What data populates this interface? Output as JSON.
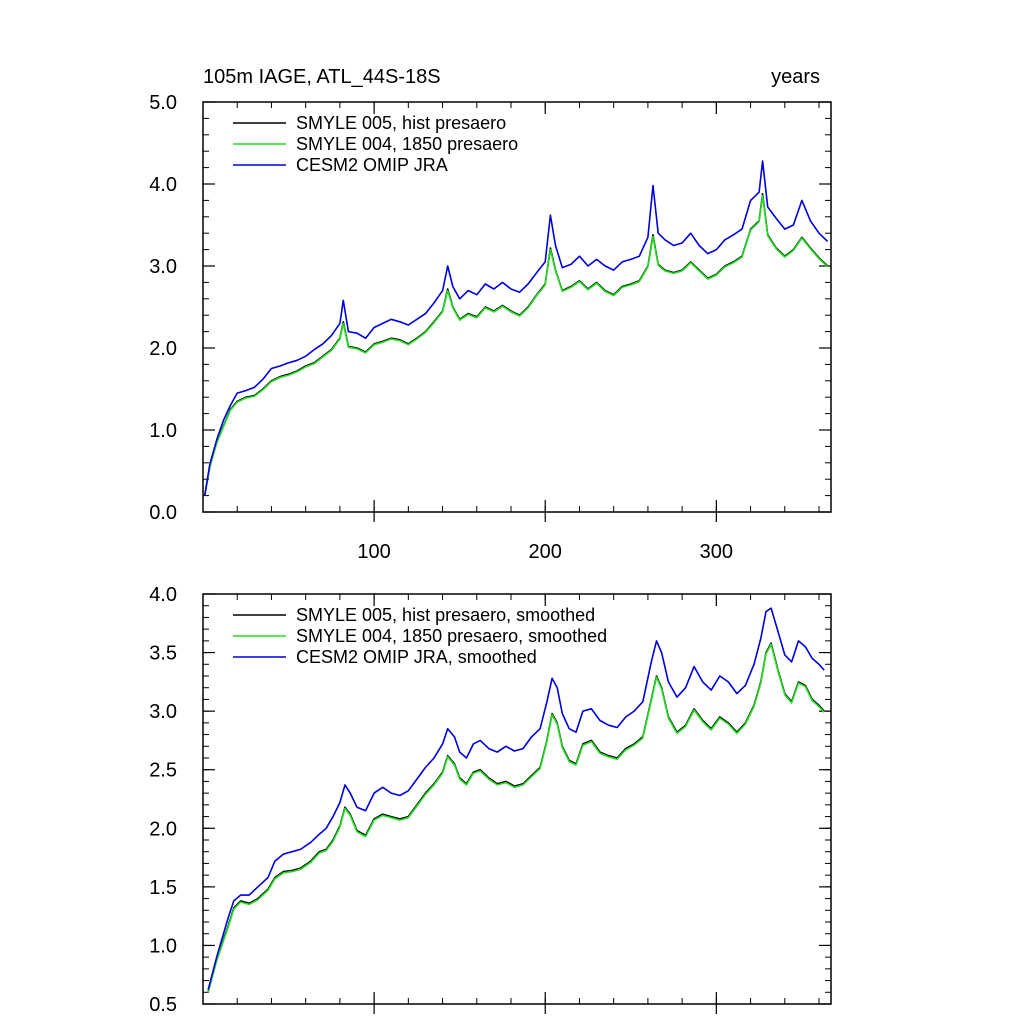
{
  "figure": {
    "title_left": "105m IAGE, ATL_44S-18S",
    "title_right": "years"
  },
  "chart_data": [
    {
      "type": "line",
      "xlim": [
        0,
        367
      ],
      "ylim": [
        0,
        5
      ],
      "x_ticks": [
        100,
        200,
        300
      ],
      "x_tick_labels": [
        "100",
        "200",
        "300"
      ],
      "y_ticks": [
        0,
        1,
        2,
        3,
        4,
        5
      ],
      "y_tick_labels": [
        "0.0",
        "1.0",
        "2.0",
        "3.0",
        "4.0",
        "5.0"
      ],
      "grid": false,
      "legend_position": "top-left",
      "series": [
        {
          "name": "SMYLE 005, hist presaero",
          "color": "#000000",
          "x": [
            1,
            4,
            8,
            12,
            16,
            20,
            25,
            30,
            35,
            40,
            45,
            50,
            55,
            60,
            65,
            70,
            75,
            80,
            82,
            85,
            90,
            95,
            100,
            105,
            110,
            115,
            120,
            125,
            130,
            135,
            140,
            143,
            146,
            150,
            155,
            160,
            165,
            170,
            175,
            180,
            185,
            190,
            195,
            200,
            203,
            206,
            210,
            215,
            220,
            225,
            230,
            235,
            240,
            245,
            250,
            255,
            260,
            263,
            266,
            270,
            275,
            280,
            285,
            290,
            295,
            300,
            305,
            310,
            315,
            320,
            325,
            327,
            330,
            335,
            340,
            345,
            350,
            355,
            360,
            365
          ],
          "y": [
            0.2,
            0.55,
            0.85,
            1.05,
            1.25,
            1.35,
            1.4,
            1.42,
            1.5,
            1.6,
            1.65,
            1.68,
            1.72,
            1.78,
            1.82,
            1.9,
            1.98,
            2.12,
            2.32,
            2.02,
            2.0,
            1.95,
            2.05,
            2.08,
            2.12,
            2.1,
            2.05,
            2.12,
            2.2,
            2.32,
            2.45,
            2.72,
            2.5,
            2.35,
            2.42,
            2.38,
            2.5,
            2.45,
            2.52,
            2.45,
            2.4,
            2.5,
            2.65,
            2.78,
            3.22,
            2.95,
            2.7,
            2.75,
            2.82,
            2.72,
            2.8,
            2.7,
            2.65,
            2.75,
            2.78,
            2.82,
            3.0,
            3.38,
            3.02,
            2.95,
            2.92,
            2.95,
            3.05,
            2.95,
            2.85,
            2.9,
            3.0,
            3.05,
            3.12,
            3.45,
            3.55,
            3.88,
            3.38,
            3.22,
            3.12,
            3.2,
            3.35,
            3.22,
            3.1,
            3.0
          ]
        },
        {
          "name": "SMYLE 004, 1850 presaero",
          "color": "#22dd22",
          "x": [
            1,
            4,
            8,
            12,
            16,
            20,
            25,
            30,
            35,
            40,
            45,
            50,
            55,
            60,
            65,
            70,
            75,
            80,
            82,
            85,
            90,
            95,
            100,
            105,
            110,
            115,
            120,
            125,
            130,
            135,
            140,
            143,
            146,
            150,
            155,
            160,
            165,
            170,
            175,
            180,
            185,
            190,
            195,
            200,
            203,
            206,
            210,
            215,
            220,
            225,
            230,
            235,
            240,
            245,
            250,
            255,
            260,
            263,
            266,
            270,
            275,
            280,
            285,
            290,
            295,
            300,
            305,
            310,
            315,
            320,
            325,
            327,
            330,
            335,
            340,
            345,
            350,
            355,
            360,
            365
          ],
          "y": [
            0.2,
            0.55,
            0.84,
            1.04,
            1.24,
            1.34,
            1.39,
            1.41,
            1.49,
            1.59,
            1.64,
            1.67,
            1.71,
            1.77,
            1.81,
            1.89,
            1.97,
            2.11,
            2.3,
            2.01,
            1.99,
            1.94,
            2.04,
            2.07,
            2.11,
            2.09,
            2.04,
            2.11,
            2.19,
            2.31,
            2.44,
            2.7,
            2.49,
            2.34,
            2.41,
            2.37,
            2.49,
            2.44,
            2.51,
            2.44,
            2.39,
            2.49,
            2.64,
            2.77,
            3.2,
            2.94,
            2.69,
            2.74,
            2.81,
            2.71,
            2.79,
            2.69,
            2.64,
            2.74,
            2.77,
            2.81,
            2.99,
            3.36,
            3.01,
            2.94,
            2.91,
            2.94,
            3.04,
            2.94,
            2.84,
            2.89,
            2.99,
            3.04,
            3.11,
            3.44,
            3.54,
            3.86,
            3.37,
            3.21,
            3.11,
            3.19,
            3.34,
            3.21,
            3.09,
            2.99
          ]
        },
        {
          "name": "CESM2 OMIP JRA",
          "color": "#0000dd",
          "x": [
            1,
            4,
            8,
            12,
            16,
            20,
            25,
            30,
            35,
            40,
            45,
            50,
            55,
            60,
            65,
            70,
            75,
            80,
            82,
            85,
            90,
            95,
            100,
            105,
            110,
            115,
            120,
            125,
            130,
            135,
            140,
            143,
            146,
            150,
            155,
            160,
            165,
            170,
            175,
            180,
            185,
            190,
            195,
            200,
            203,
            206,
            210,
            215,
            220,
            225,
            230,
            235,
            240,
            245,
            250,
            255,
            260,
            263,
            266,
            270,
            275,
            280,
            285,
            290,
            295,
            300,
            305,
            310,
            315,
            320,
            325,
            327,
            330,
            335,
            340,
            345,
            350,
            355,
            360,
            365
          ],
          "y": [
            0.2,
            0.58,
            0.88,
            1.12,
            1.3,
            1.45,
            1.48,
            1.52,
            1.62,
            1.75,
            1.78,
            1.82,
            1.85,
            1.9,
            1.98,
            2.05,
            2.15,
            2.3,
            2.58,
            2.2,
            2.18,
            2.12,
            2.25,
            2.3,
            2.35,
            2.32,
            2.28,
            2.35,
            2.42,
            2.55,
            2.7,
            3.0,
            2.75,
            2.6,
            2.7,
            2.65,
            2.78,
            2.72,
            2.8,
            2.72,
            2.68,
            2.78,
            2.92,
            3.05,
            3.62,
            3.25,
            2.98,
            3.02,
            3.12,
            3.0,
            3.08,
            3.0,
            2.95,
            3.05,
            3.08,
            3.12,
            3.35,
            3.98,
            3.4,
            3.32,
            3.25,
            3.28,
            3.4,
            3.25,
            3.15,
            3.2,
            3.32,
            3.38,
            3.45,
            3.8,
            3.9,
            4.28,
            3.72,
            3.58,
            3.45,
            3.5,
            3.8,
            3.55,
            3.4,
            3.3
          ]
        }
      ]
    },
    {
      "type": "line",
      "xlim": [
        0,
        367
      ],
      "ylim": [
        0.5,
        4
      ],
      "x_ticks": [
        100,
        200,
        300
      ],
      "x_tick_labels": [
        "",
        "",
        ""
      ],
      "y_ticks": [
        0.5,
        1.0,
        1.5,
        2.0,
        2.5,
        3.0,
        3.5,
        4.0
      ],
      "y_tick_labels": [
        "0.5",
        "1.0",
        "1.5",
        "2.0",
        "2.5",
        "3.0",
        "3.5",
        "4.0"
      ],
      "grid": false,
      "legend_position": "top-left",
      "series": [
        {
          "name": "SMYLE 005, hist presaero, smoothed",
          "color": "#000000",
          "x": [
            3,
            8,
            12,
            15,
            18,
            22,
            27,
            32,
            38,
            42,
            47,
            52,
            57,
            63,
            68,
            72,
            76,
            80,
            83,
            86,
            90,
            95,
            100,
            105,
            110,
            115,
            120,
            125,
            130,
            135,
            140,
            143,
            147,
            150,
            154,
            158,
            162,
            167,
            172,
            177,
            182,
            187,
            192,
            197,
            201,
            204,
            207,
            210,
            214,
            218,
            222,
            227,
            232,
            237,
            242,
            247,
            252,
            257,
            262,
            265,
            268,
            272,
            277,
            282,
            287,
            292,
            297,
            302,
            307,
            312,
            317,
            322,
            326,
            329,
            332,
            336,
            340,
            344,
            348,
            352,
            356,
            360,
            363
          ],
          "y": [
            0.6,
            0.88,
            1.05,
            1.18,
            1.32,
            1.38,
            1.36,
            1.4,
            1.48,
            1.58,
            1.63,
            1.64,
            1.66,
            1.72,
            1.8,
            1.82,
            1.9,
            2.02,
            2.18,
            2.12,
            1.98,
            1.94,
            2.08,
            2.12,
            2.1,
            2.08,
            2.1,
            2.2,
            2.3,
            2.38,
            2.48,
            2.62,
            2.55,
            2.43,
            2.38,
            2.48,
            2.5,
            2.43,
            2.38,
            2.4,
            2.36,
            2.38,
            2.45,
            2.52,
            2.75,
            2.98,
            2.9,
            2.7,
            2.58,
            2.55,
            2.72,
            2.75,
            2.65,
            2.62,
            2.6,
            2.68,
            2.72,
            2.78,
            3.1,
            3.3,
            3.2,
            2.95,
            2.82,
            2.88,
            3.02,
            2.92,
            2.85,
            2.95,
            2.9,
            2.82,
            2.9,
            3.05,
            3.25,
            3.5,
            3.58,
            3.35,
            3.15,
            3.08,
            3.25,
            3.22,
            3.1,
            3.05,
            3.0
          ]
        },
        {
          "name": "SMYLE 004, 1850 presaero, smoothed",
          "color": "#22dd22",
          "x": [
            3,
            8,
            12,
            15,
            18,
            22,
            27,
            32,
            38,
            42,
            47,
            52,
            57,
            63,
            68,
            72,
            76,
            80,
            83,
            86,
            90,
            95,
            100,
            105,
            110,
            115,
            120,
            125,
            130,
            135,
            140,
            143,
            147,
            150,
            154,
            158,
            162,
            167,
            172,
            177,
            182,
            187,
            192,
            197,
            201,
            204,
            207,
            210,
            214,
            218,
            222,
            227,
            232,
            237,
            242,
            247,
            252,
            257,
            262,
            265,
            268,
            272,
            277,
            282,
            287,
            292,
            297,
            302,
            307,
            312,
            317,
            322,
            326,
            329,
            332,
            336,
            340,
            344,
            348,
            352,
            356,
            360,
            363
          ],
          "y": [
            0.6,
            0.87,
            1.04,
            1.17,
            1.31,
            1.37,
            1.35,
            1.39,
            1.47,
            1.57,
            1.62,
            1.63,
            1.65,
            1.71,
            1.79,
            1.81,
            1.89,
            2.01,
            2.17,
            2.11,
            1.97,
            1.93,
            2.07,
            2.11,
            2.09,
            2.07,
            2.09,
            2.19,
            2.29,
            2.37,
            2.47,
            2.61,
            2.54,
            2.42,
            2.37,
            2.47,
            2.49,
            2.42,
            2.37,
            2.39,
            2.35,
            2.37,
            2.44,
            2.51,
            2.74,
            2.97,
            2.89,
            2.69,
            2.57,
            2.54,
            2.71,
            2.74,
            2.64,
            2.61,
            2.59,
            2.67,
            2.71,
            2.77,
            3.09,
            3.29,
            3.19,
            2.94,
            2.81,
            2.87,
            3.01,
            2.91,
            2.84,
            2.94,
            2.89,
            2.81,
            2.89,
            3.04,
            3.24,
            3.49,
            3.57,
            3.34,
            3.14,
            3.07,
            3.24,
            3.21,
            3.09,
            3.04,
            2.99
          ]
        },
        {
          "name": "CESM2 OMIP JRA, smoothed",
          "color": "#0000dd",
          "x": [
            3,
            8,
            12,
            15,
            18,
            22,
            27,
            32,
            38,
            42,
            47,
            52,
            57,
            63,
            68,
            72,
            76,
            80,
            83,
            86,
            90,
            95,
            100,
            105,
            110,
            115,
            120,
            125,
            130,
            135,
            140,
            143,
            147,
            150,
            154,
            158,
            162,
            167,
            172,
            177,
            182,
            187,
            192,
            197,
            201,
            204,
            207,
            210,
            214,
            218,
            222,
            227,
            232,
            237,
            242,
            247,
            252,
            257,
            262,
            265,
            268,
            272,
            277,
            282,
            287,
            292,
            297,
            302,
            307,
            312,
            317,
            322,
            326,
            329,
            332,
            336,
            340,
            344,
            348,
            352,
            356,
            360,
            363
          ],
          "y": [
            0.62,
            0.9,
            1.1,
            1.25,
            1.38,
            1.43,
            1.43,
            1.5,
            1.58,
            1.72,
            1.78,
            1.8,
            1.82,
            1.88,
            1.95,
            2.0,
            2.1,
            2.22,
            2.37,
            2.3,
            2.18,
            2.15,
            2.3,
            2.35,
            2.3,
            2.28,
            2.32,
            2.42,
            2.52,
            2.6,
            2.72,
            2.85,
            2.78,
            2.65,
            2.6,
            2.72,
            2.75,
            2.68,
            2.65,
            2.7,
            2.66,
            2.68,
            2.78,
            2.85,
            3.08,
            3.28,
            3.2,
            2.98,
            2.85,
            2.82,
            3.0,
            3.02,
            2.92,
            2.88,
            2.86,
            2.95,
            3.0,
            3.08,
            3.42,
            3.6,
            3.5,
            3.25,
            3.12,
            3.2,
            3.38,
            3.25,
            3.18,
            3.3,
            3.25,
            3.15,
            3.22,
            3.4,
            3.62,
            3.85,
            3.88,
            3.68,
            3.48,
            3.42,
            3.6,
            3.55,
            3.45,
            3.4,
            3.35
          ]
        }
      ]
    }
  ]
}
